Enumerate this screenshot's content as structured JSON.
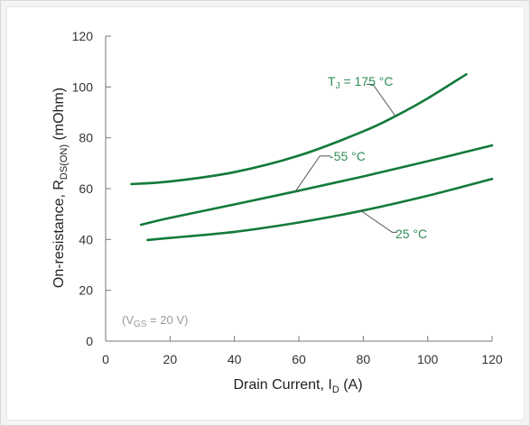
{
  "chart_data": {
    "type": "line",
    "xlabel": {
      "main": "Drain Current, I",
      "sub": "D",
      "tail": " (A)"
    },
    "ylabel": {
      "main": "On-resistance, R",
      "sub": "DS(ON)",
      "tail": " (mOhm)"
    },
    "xlim": [
      0,
      120
    ],
    "ylim": [
      0,
      120
    ],
    "xticks": [
      0,
      20,
      40,
      60,
      80,
      100,
      120
    ],
    "yticks": [
      0,
      20,
      40,
      60,
      80,
      100,
      120
    ],
    "grid": false,
    "annotation": {
      "pre": "(V",
      "sub": "GS",
      "post": " = 20 V)"
    },
    "series": [
      {
        "label": {
          "pre": "T",
          "sub": "J",
          "post": " = 175 °C"
        },
        "x": [
          8,
          20,
          40,
          60,
          80,
          90,
          100,
          112
        ],
        "y": [
          61.8,
          62.8,
          66.5,
          73,
          82.5,
          88.5,
          95.5,
          105
        ]
      },
      {
        "label": {
          "pre": "-55 °C",
          "sub": "",
          "post": ""
        },
        "x": [
          11,
          20,
          40,
          60,
          80,
          100,
          120
        ],
        "y": [
          45.8,
          48.5,
          53.8,
          59.2,
          64.8,
          70.8,
          77
        ]
      },
      {
        "label": {
          "pre": "25 °C",
          "sub": "",
          "post": ""
        },
        "x": [
          13,
          20,
          40,
          60,
          80,
          100,
          120
        ],
        "y": [
          39.8,
          40.6,
          43,
          46.7,
          51.4,
          57.2,
          63.8
        ]
      }
    ]
  },
  "colors": {
    "line": "#137a3a",
    "label": "#2e8b57",
    "leader": "#555555",
    "axis": "#777777"
  }
}
